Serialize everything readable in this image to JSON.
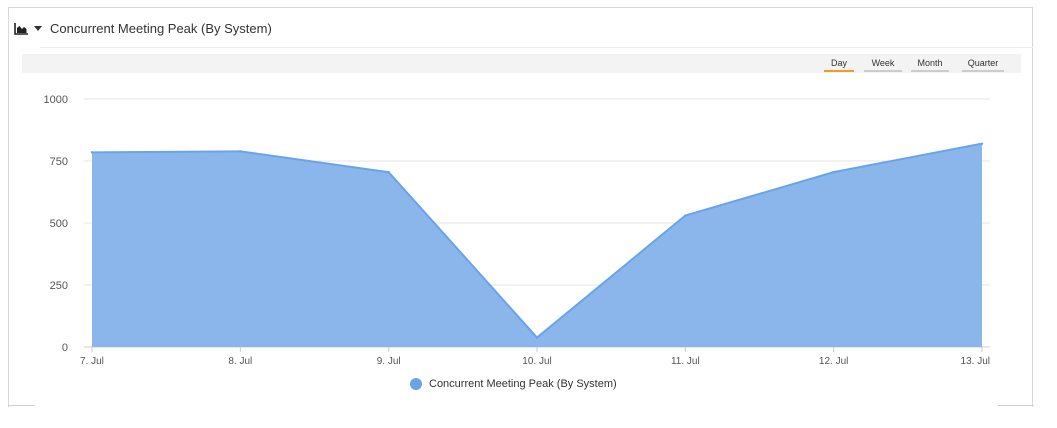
{
  "header": {
    "title": "Concurrent Meeting Peak (By System)",
    "chart_icon": "area-chart-icon",
    "menu_icon": "caret-down-icon"
  },
  "range_buttons": [
    {
      "label": "Day",
      "active": true
    },
    {
      "label": "Week",
      "active": false
    },
    {
      "label": "Month",
      "active": false
    },
    {
      "label": "Quarter",
      "active": false
    }
  ],
  "colors": {
    "series_fill": "#8ab6ec",
    "series_line": "#6aa4e8",
    "active_underline": "#f39c1f",
    "grid": "#e6e6e6"
  },
  "chart_data": {
    "type": "area",
    "title": "",
    "xlabel": "",
    "ylabel": "",
    "categories": [
      "7. Jul",
      "8. Jul",
      "9. Jul",
      "10. Jul",
      "11. Jul",
      "12. Jul",
      "13. Jul"
    ],
    "series": [
      {
        "name": "Concurrent Meeting Peak (By System)",
        "values": [
          785,
          789,
          705,
          38,
          530,
          705,
          820
        ]
      }
    ],
    "ylim": [
      0,
      1000
    ],
    "yticks": [
      "0",
      "250",
      "500",
      "750",
      "1000"
    ],
    "grid": true,
    "legend": "bottom-center"
  }
}
